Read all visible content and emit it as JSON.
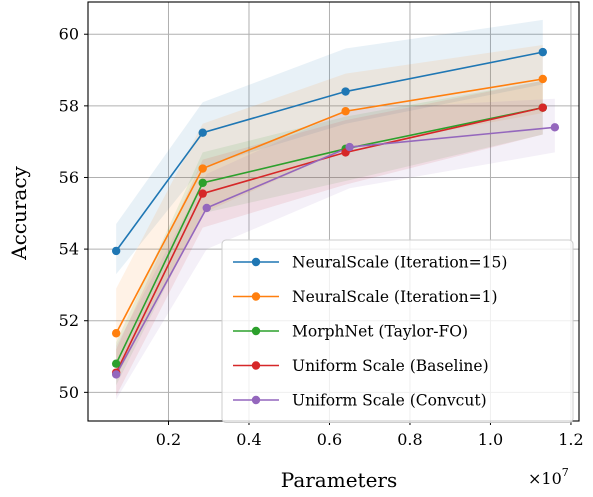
{
  "chart_data": {
    "type": "line",
    "xlabel": "Parameters",
    "ylabel": "Accuracy",
    "x_multiplier": "×10",
    "x_exponent": "7",
    "xlim": [
      0.0,
      1.22
    ],
    "ylim": [
      49.2,
      60.9
    ],
    "xticks": [
      0.2,
      0.4,
      0.6,
      0.8,
      1.0,
      1.2
    ],
    "xtick_labels": [
      "0.2",
      "0.4",
      "0.6",
      "0.8",
      "1.0",
      "1.2"
    ],
    "yticks": [
      50,
      52,
      54,
      56,
      58,
      60
    ],
    "ytick_labels": [
      "50",
      "52",
      "54",
      "56",
      "58",
      "60"
    ],
    "grid": true,
    "legend_position": "lower-right",
    "series": [
      {
        "name": "NeuralScale (Iteration=15)",
        "color": "#1f77b4",
        "x": [
          0.07,
          0.285,
          0.64,
          1.13
        ],
        "y": [
          53.95,
          57.25,
          58.4,
          59.5
        ],
        "band_low": [
          53.3,
          56.3,
          57.5,
          58.6
        ],
        "band_high": [
          54.7,
          58.1,
          59.6,
          60.4
        ]
      },
      {
        "name": "NeuralScale (Iteration=1)",
        "color": "#ff7f0e",
        "x": [
          0.07,
          0.285,
          0.64,
          1.13
        ],
        "y": [
          51.65,
          56.25,
          57.85,
          58.75
        ],
        "band_low": [
          50.4,
          55.0,
          56.8,
          57.8
        ],
        "band_high": [
          52.9,
          57.5,
          58.9,
          59.7
        ]
      },
      {
        "name": "MorphNet (Taylor-FO)",
        "color": "#2ca02c",
        "x": [
          0.07,
          0.285,
          0.64,
          1.13
        ],
        "y": [
          50.8,
          55.85,
          56.8,
          57.95
        ],
        "band_low": [
          50.2,
          55.0,
          55.9,
          57.2
        ],
        "band_high": [
          51.4,
          56.7,
          57.7,
          58.7
        ]
      },
      {
        "name": "Uniform Scale (Baseline)",
        "color": "#d62728",
        "x": [
          0.07,
          0.285,
          0.64,
          1.13
        ],
        "y": [
          50.55,
          55.55,
          56.7,
          57.95
        ],
        "band_low": [
          49.9,
          54.6,
          55.8,
          57.2
        ],
        "band_high": [
          51.2,
          56.5,
          57.6,
          58.7
        ]
      },
      {
        "name": "Uniform Scale (Convcut)",
        "color": "#9467bd",
        "x": [
          0.07,
          0.295,
          0.65,
          1.16
        ],
        "y": [
          50.5,
          55.15,
          56.85,
          57.4
        ],
        "band_low": [
          49.8,
          54.0,
          55.7,
          56.7
        ],
        "band_high": [
          51.3,
          56.1,
          57.9,
          58.2
        ]
      }
    ]
  }
}
